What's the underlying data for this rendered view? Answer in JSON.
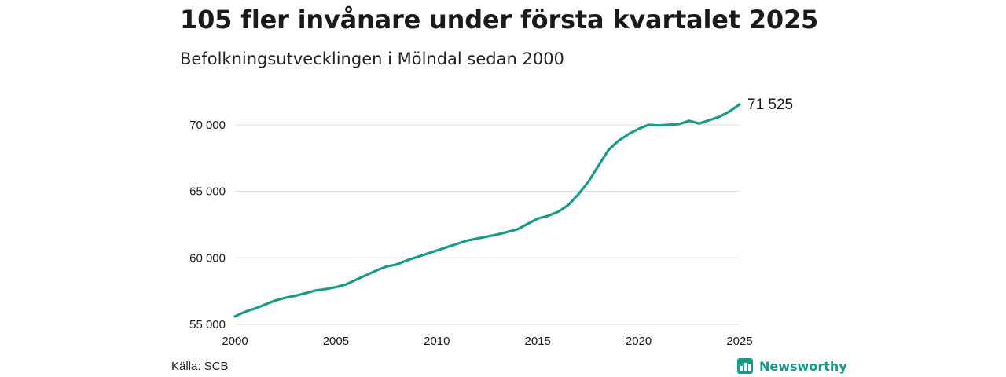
{
  "header": {
    "title": "105 fler invånare under första kvartalet 2025",
    "subtitle": "Befolkningsutvecklingen i Mölndal sedan 2000"
  },
  "footer": {
    "source": "Källa: SCB",
    "brand": "Newsworthy"
  },
  "colors": {
    "line": "#1a9a8a",
    "grid": "#dddddd",
    "text": "#1a1a1a"
  },
  "chart_data": {
    "type": "line",
    "title": "105 fler invånare under första kvartalet 2025",
    "subtitle": "Befolkningsutvecklingen i Mölndal sedan 2000",
    "xlabel": "",
    "ylabel": "",
    "xlim": [
      2000,
      2025
    ],
    "ylim": [
      55000,
      72000
    ],
    "x_ticks": [
      2000,
      2005,
      2010,
      2015,
      2020,
      2025
    ],
    "y_ticks": [
      55000,
      60000,
      65000,
      70000
    ],
    "x_tick_labels": [
      "2000",
      "2005",
      "2010",
      "2015",
      "2020",
      "2025"
    ],
    "y_tick_labels": [
      "55 000",
      "60 000",
      "65 000",
      "70 000"
    ],
    "grid": "horizontal",
    "end_label": "71 525",
    "series": [
      {
        "x": [
          2000.0,
          2000.5,
          2001.0,
          2001.5,
          2002.0,
          2002.5,
          2003.0,
          2003.5,
          2004.0,
          2004.5,
          2005.0,
          2005.5,
          2006.0,
          2006.5,
          2007.0,
          2007.5,
          2008.0,
          2008.5,
          2009.0,
          2009.5,
          2010.0,
          2010.5,
          2011.0,
          2011.5,
          2012.0,
          2012.5,
          2013.0,
          2013.5,
          2014.0,
          2014.5,
          2015.0,
          2015.5,
          2016.0,
          2016.5,
          2017.0,
          2017.5,
          2018.0,
          2018.5,
          2019.0,
          2019.5,
          2020.0,
          2020.5,
          2021.0,
          2021.5,
          2022.0,
          2022.5,
          2023.0,
          2023.5,
          2024.0,
          2024.5,
          2025.0
        ],
        "values": [
          55600,
          55950,
          56200,
          56500,
          56800,
          57000,
          57150,
          57350,
          57550,
          57650,
          57800,
          58000,
          58350,
          58700,
          59050,
          59350,
          59500,
          59800,
          60050,
          60300,
          60550,
          60800,
          61050,
          61300,
          61450,
          61600,
          61750,
          61950,
          62150,
          62550,
          62950,
          63150,
          63450,
          63950,
          64750,
          65700,
          66900,
          68100,
          68800,
          69300,
          69700,
          70000,
          69950,
          70000,
          70050,
          70300,
          70100,
          70350,
          70600,
          71000,
          71525
        ]
      }
    ]
  }
}
